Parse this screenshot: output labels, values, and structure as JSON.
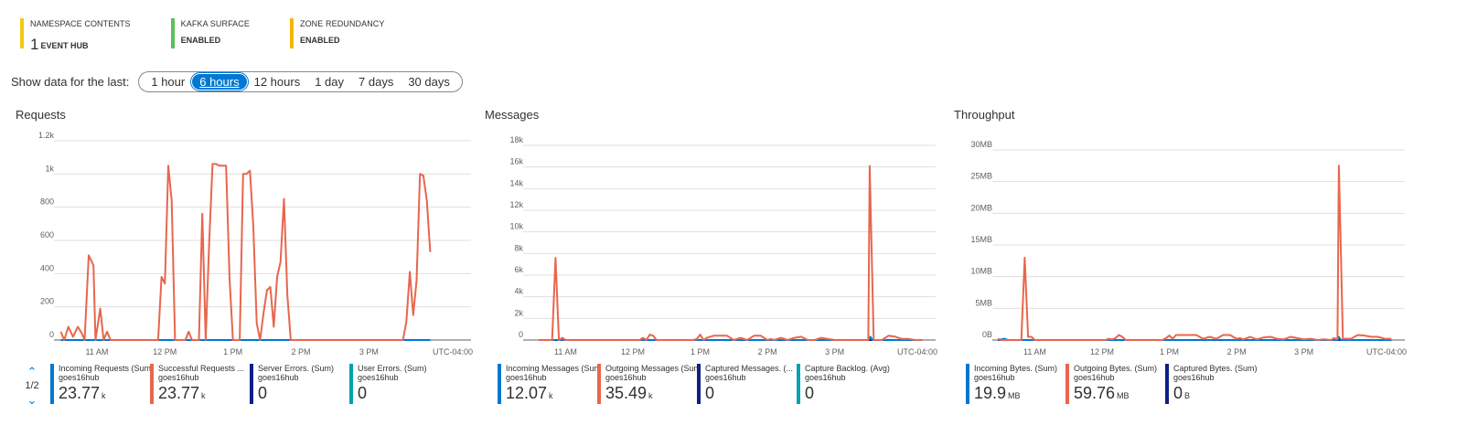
{
  "summary": [
    {
      "label": "NAMESPACE CONTENTS",
      "number": "1",
      "value": "EVENT HUB",
      "color": "#f2c811"
    },
    {
      "label": "KAFKA SURFACE",
      "number": "",
      "value": "ENABLED",
      "color": "#57c255"
    },
    {
      "label": "ZONE REDUNDANCY",
      "number": "",
      "value": "ENABLED",
      "color": "#f7b500"
    }
  ],
  "timerange": {
    "label": "Show data for the last:",
    "options": [
      "1 hour",
      "6 hours",
      "12 hours",
      "1 day",
      "7 days",
      "30 days"
    ],
    "selected": "6 hours"
  },
  "pager": {
    "text": "1/2"
  },
  "chart_data": [
    {
      "type": "line",
      "title": "Requests",
      "ytick_labels": [
        "0",
        "200",
        "400",
        "600",
        "800",
        "1k",
        "1.2k"
      ],
      "yticks": [
        0,
        200,
        400,
        600,
        800,
        1000,
        1200
      ],
      "ylim": [
        0,
        1200
      ],
      "xtick_labels": [
        "11 AM",
        "12 PM",
        "1 PM",
        "2 PM",
        "3 PM"
      ],
      "xtick_hours": [
        11,
        12,
        13,
        14,
        15
      ],
      "xlim": [
        10.45,
        16.5
      ],
      "timezone": "UTC-04:00",
      "series": [
        {
          "name": "Successful Requests ...",
          "color": "#e8664d",
          "x": [
            10.47,
            10.52,
            10.58,
            10.65,
            10.72,
            10.78,
            10.82,
            10.88,
            10.95,
            10.98,
            11.05,
            11.1,
            11.15,
            11.2,
            11.25,
            11.3,
            11.35,
            11.4,
            11.45,
            11.5,
            11.55,
            11.6,
            11.65,
            11.7,
            11.75,
            11.8,
            11.85,
            11.9,
            11.95,
            12.0,
            12.05,
            12.1,
            12.15,
            12.2,
            12.25,
            12.3,
            12.35,
            12.4,
            12.45,
            12.5,
            12.55,
            12.6,
            12.65,
            12.7,
            12.75,
            12.8,
            12.85,
            12.9,
            12.95,
            13.0,
            13.05,
            13.1,
            13.15,
            13.2,
            13.25,
            13.3,
            13.35,
            13.4,
            13.45,
            13.5,
            13.55,
            13.6,
            13.65,
            13.7,
            13.75,
            13.8,
            13.85,
            13.9,
            13.95,
            14.0,
            14.05,
            14.1,
            14.15,
            14.2,
            14.25,
            14.3,
            14.35,
            14.4,
            14.45,
            14.5,
            14.55,
            14.6,
            14.65,
            14.7,
            14.75,
            14.8,
            14.85,
            14.9,
            14.95,
            15.0,
            15.05,
            15.1,
            15.15,
            15.2,
            15.25,
            15.3,
            15.35,
            15.4,
            15.45,
            15.5,
            15.55,
            15.6,
            15.65,
            15.7,
            15.75,
            15.8,
            15.85,
            15.9
          ],
          "y": [
            50,
            0,
            80,
            20,
            80,
            40,
            0,
            510,
            450,
            0,
            190,
            0,
            50,
            0,
            0,
            0,
            0,
            0,
            0,
            0,
            0,
            0,
            0,
            0,
            0,
            0,
            0,
            0,
            380,
            340,
            1050,
            840,
            0,
            0,
            0,
            0,
            50,
            0,
            0,
            0,
            760,
            0,
            570,
            1060,
            1060,
            1050,
            1050,
            1050,
            370,
            0,
            0,
            0,
            1000,
            1000,
            1020,
            680,
            100,
            0,
            160,
            300,
            320,
            80,
            380,
            470,
            850,
            270,
            0,
            0,
            0,
            0,
            0,
            0,
            0,
            0,
            0,
            0,
            0,
            0,
            0,
            0,
            0,
            0,
            0,
            0,
            0,
            0,
            0,
            0,
            0,
            0,
            0,
            0,
            0,
            0,
            0,
            0,
            0,
            0,
            0,
            0,
            110,
            410,
            150,
            360,
            1000,
            990,
            840,
            530
          ]
        },
        {
          "name": "Incoming Requests (Sum)",
          "color": "#0078d4",
          "x": [
            10.47,
            15.9
          ],
          "y": [
            0,
            0
          ]
        },
        {
          "name": "Server Errors. (Sum)",
          "color": "#0e1f85",
          "x": [
            10.47,
            15.9
          ],
          "y": [
            0,
            0
          ]
        },
        {
          "name": "User Errors. (Sum)",
          "color": "#00a2ad",
          "x": [
            10.47,
            15.9
          ],
          "y": [
            0,
            0
          ]
        }
      ],
      "legend": [
        {
          "name": "Incoming Requests (Sum)",
          "resource": "goes16hub",
          "value": "23.77",
          "unit": "k",
          "color": "#0078d4"
        },
        {
          "name": "Successful Requests ...",
          "resource": "goes16hub",
          "value": "23.77",
          "unit": "k",
          "color": "#e8664d"
        },
        {
          "name": "Server Errors. (Sum)",
          "resource": "goes16hub",
          "value": "0",
          "unit": "",
          "color": "#0e1f85"
        },
        {
          "name": "User Errors. (Sum)",
          "resource": "goes16hub",
          "value": "0",
          "unit": "",
          "color": "#00a2ad"
        }
      ]
    },
    {
      "type": "line",
      "title": "Messages",
      "ytick_labels": [
        "0",
        "2k",
        "4k",
        "6k",
        "8k",
        "10k",
        "12k",
        "14k",
        "16k",
        "18k"
      ],
      "yticks": [
        0,
        2000,
        4000,
        6000,
        8000,
        10000,
        12000,
        14000,
        16000,
        18000
      ],
      "ylim": [
        0,
        18000
      ],
      "xtick_labels": [
        "11 AM",
        "12 PM",
        "1 PM",
        "2 PM",
        "3 PM"
      ],
      "xtick_hours": [
        11,
        12,
        13,
        14,
        15
      ],
      "xlim": [
        10.45,
        16.5
      ],
      "timezone": "UTC-04:00",
      "series": [
        {
          "name": "Outgoing Messages (Sum)",
          "color": "#e8664d",
          "x": [
            10.6,
            10.7,
            10.75,
            10.8,
            10.85,
            10.9,
            10.95,
            11.0,
            11.1,
            11.2,
            11.3,
            11.4,
            11.5,
            11.6,
            11.7,
            11.8,
            11.9,
            12.0,
            12.05,
            12.1,
            12.15,
            12.2,
            12.25,
            12.3,
            12.35,
            12.4,
            12.5,
            12.6,
            12.7,
            12.8,
            12.9,
            12.95,
            13.0,
            13.05,
            13.1,
            13.2,
            13.3,
            13.4,
            13.5,
            13.6,
            13.7,
            13.8,
            13.9,
            14.0,
            14.05,
            14.1,
            14.2,
            14.3,
            14.4,
            14.5,
            14.6,
            14.7,
            14.8,
            14.9,
            15.0,
            15.1,
            15.2,
            15.3,
            15.4,
            15.45,
            15.5,
            15.52,
            15.58,
            15.65,
            15.7,
            15.8,
            15.9,
            16.0,
            16.1,
            16.2,
            16.3
          ],
          "y": [
            0,
            0,
            0,
            0,
            7600,
            0,
            200,
            0,
            0,
            0,
            0,
            0,
            0,
            0,
            0,
            0,
            0,
            0,
            0,
            0,
            200,
            0,
            500,
            400,
            0,
            0,
            0,
            0,
            0,
            0,
            0,
            100,
            500,
            0,
            200,
            400,
            400,
            400,
            0,
            200,
            0,
            400,
            400,
            0,
            100,
            0,
            200,
            0,
            200,
            300,
            0,
            0,
            200,
            100,
            0,
            0,
            0,
            0,
            0,
            0,
            0,
            16100,
            0,
            0,
            0,
            400,
            300,
            100,
            100,
            0,
            0
          ]
        },
        {
          "name": "Incoming Messages (Sum)",
          "color": "#0078d4",
          "x": [
            10.6,
            15.5,
            15.53,
            15.56,
            16.3
          ],
          "y": [
            0,
            0,
            300,
            0,
            0
          ]
        },
        {
          "name": "Captured Messages. (...",
          "color": "#0e1f85",
          "x": [
            10.6,
            16.3
          ],
          "y": [
            0,
            0
          ]
        },
        {
          "name": "Capture Backlog. (Avg)",
          "color": "#00a2ad",
          "x": [
            10.6,
            16.3
          ],
          "y": [
            0,
            0
          ]
        }
      ],
      "legend": [
        {
          "name": "Incoming Messages (Sum)",
          "resource": "goes16hub",
          "value": "12.07",
          "unit": "k",
          "color": "#0078d4"
        },
        {
          "name": "Outgoing Messages (Sum)",
          "resource": "goes16hub",
          "value": "35.49",
          "unit": "k",
          "color": "#e8664d"
        },
        {
          "name": "Captured Messages. (...",
          "resource": "goes16hub",
          "value": "0",
          "unit": "",
          "color": "#0e1f85"
        },
        {
          "name": "Capture Backlog. (Avg)",
          "resource": "goes16hub",
          "value": "0",
          "unit": "",
          "color": "#00a2ad"
        }
      ]
    },
    {
      "type": "line",
      "title": "Throughput",
      "ytick_labels": [
        "0B",
        "5MB",
        "10MB",
        "15MB",
        "20MB",
        "25MB",
        "30MB"
      ],
      "yticks": [
        0,
        5,
        10,
        15,
        20,
        25,
        30
      ],
      "ylim": [
        0,
        30
      ],
      "xtick_labels": [
        "11 AM",
        "12 PM",
        "1 PM",
        "2 PM",
        "3 PM"
      ],
      "xtick_hours": [
        11,
        12,
        13,
        14,
        15
      ],
      "xlim": [
        10.45,
        16.5
      ],
      "timezone": "UTC-04:00",
      "series": [
        {
          "name": "Outgoing Bytes. (Sum)",
          "color": "#e8664d",
          "x": [
            10.45,
            10.5,
            10.6,
            10.7,
            10.75,
            10.8,
            10.85,
            10.9,
            10.95,
            11.0,
            11.1,
            11.2,
            11.3,
            11.4,
            11.5,
            11.6,
            11.7,
            11.8,
            11.9,
            12.0,
            12.05,
            12.1,
            12.15,
            12.2,
            12.25,
            12.3,
            12.35,
            12.4,
            12.5,
            12.6,
            12.7,
            12.8,
            12.9,
            12.95,
            13.0,
            13.05,
            13.1,
            13.2,
            13.3,
            13.4,
            13.5,
            13.6,
            13.7,
            13.8,
            13.9,
            14.0,
            14.05,
            14.1,
            14.2,
            14.3,
            14.4,
            14.5,
            14.6,
            14.7,
            14.8,
            14.9,
            15.0,
            15.1,
            15.2,
            15.3,
            15.4,
            15.45,
            15.5,
            15.52,
            15.58,
            15.65,
            15.7,
            15.8,
            15.9,
            16.0,
            16.1,
            16.2,
            16.3
          ],
          "y": [
            0.2,
            0,
            0,
            0,
            0,
            0,
            13,
            0.5,
            0.5,
            0,
            0,
            0,
            0,
            0,
            0,
            0,
            0,
            0,
            0,
            0,
            0,
            0.2,
            0.1,
            0.3,
            0.8,
            0.5,
            0,
            0,
            0,
            0,
            0,
            0,
            0,
            0.3,
            0.7,
            0.2,
            0.8,
            0.8,
            0.8,
            0.8,
            0.2,
            0.5,
            0.2,
            0.8,
            0.8,
            0.2,
            0.3,
            0.1,
            0.5,
            0.1,
            0.4,
            0.5,
            0.2,
            0.1,
            0.5,
            0.3,
            0.1,
            0.2,
            0,
            0.1,
            0,
            0.3,
            0.1,
            27.5,
            0.2,
            0.2,
            0.2,
            0.8,
            0.7,
            0.5,
            0.5,
            0.2,
            0.2
          ]
        },
        {
          "name": "Incoming Bytes. (Sum)",
          "color": "#0078d4",
          "x": [
            10.45,
            10.55,
            10.6,
            10.65,
            15.5,
            15.52,
            15.55,
            16.3
          ],
          "y": [
            0,
            0.2,
            0,
            0,
            0,
            0.5,
            0,
            0
          ]
        },
        {
          "name": "Captured Bytes. (Sum)",
          "color": "#0e1f85",
          "x": [
            10.45,
            16.3
          ],
          "y": [
            0,
            0
          ]
        }
      ],
      "legend": [
        {
          "name": "Incoming Bytes. (Sum)",
          "resource": "goes16hub",
          "value": "19.9",
          "unit": "MB",
          "color": "#0078d4"
        },
        {
          "name": "Outgoing Bytes. (Sum)",
          "resource": "goes16hub",
          "value": "59.76",
          "unit": "MB",
          "color": "#e8664d"
        },
        {
          "name": "Captured Bytes. (Sum)",
          "resource": "goes16hub",
          "value": "0",
          "unit": "B",
          "color": "#0e1f85"
        }
      ]
    }
  ]
}
